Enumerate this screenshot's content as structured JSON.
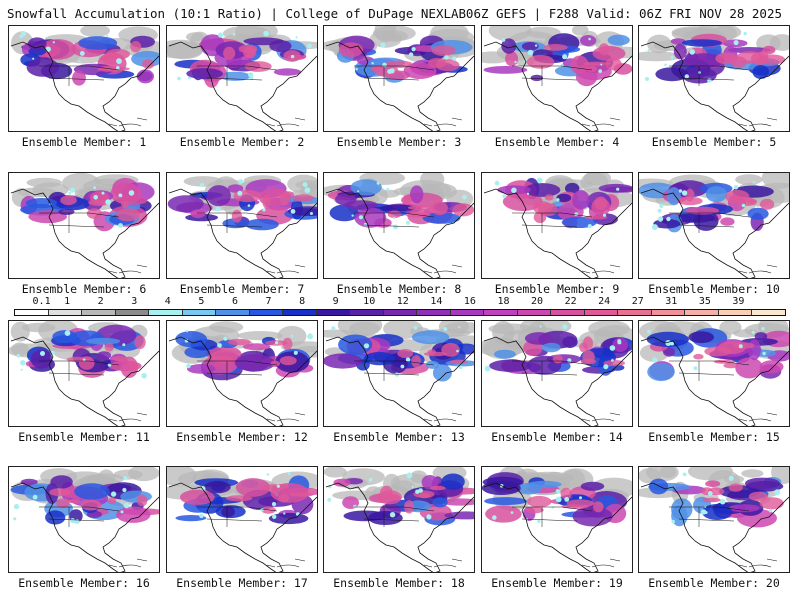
{
  "header": {
    "left_title": "Snowfall Accumulation (10:1 Ratio) | College of DuPage NEXLAB",
    "right_title": "06Z GEFS | F288 Valid: 06Z FRI NOV 28 2025"
  },
  "panels": [
    {
      "label": "Ensemble Member: 1"
    },
    {
      "label": "Ensemble Member: 2"
    },
    {
      "label": "Ensemble Member: 3"
    },
    {
      "label": "Ensemble Member: 4"
    },
    {
      "label": "Ensemble Member: 5"
    },
    {
      "label": "Ensemble Member: 6"
    },
    {
      "label": "Ensemble Member: 7"
    },
    {
      "label": "Ensemble Member: 8"
    },
    {
      "label": "Ensemble Member: 9"
    },
    {
      "label": "Ensemble Member: 10"
    },
    {
      "label": "Ensemble Member: 11"
    },
    {
      "label": "Ensemble Member: 12"
    },
    {
      "label": "Ensemble Member: 13"
    },
    {
      "label": "Ensemble Member: 14"
    },
    {
      "label": "Ensemble Member: 15"
    },
    {
      "label": "Ensemble Member: 16"
    },
    {
      "label": "Ensemble Member: 17"
    },
    {
      "label": "Ensemble Member: 18"
    },
    {
      "label": "Ensemble Member: 19"
    },
    {
      "label": "Ensemble Member: 20"
    }
  ],
  "color_scale": {
    "ticks": [
      "0.1",
      "1",
      "2",
      "3",
      "4",
      "5",
      "6",
      "7",
      "8",
      "9",
      "10",
      "12",
      "14",
      "16",
      "18",
      "20",
      "22",
      "24",
      "27",
      "31",
      "35",
      "39"
    ],
    "colors": [
      "#ffffff",
      "#e0e0e0",
      "#b8b8b8",
      "#8c8c8c",
      "#a8f0f0",
      "#78c8f0",
      "#5090e8",
      "#2858e0",
      "#1830c8",
      "#3818a0",
      "#5a20a8",
      "#7828b0",
      "#9030b8",
      "#a838c0",
      "#c040c0",
      "#cc48b0",
      "#d850a0",
      "#e05898",
      "#e87090",
      "#f09098",
      "#f4b0a8",
      "#f8d0b8",
      "#fce8d0"
    ]
  }
}
